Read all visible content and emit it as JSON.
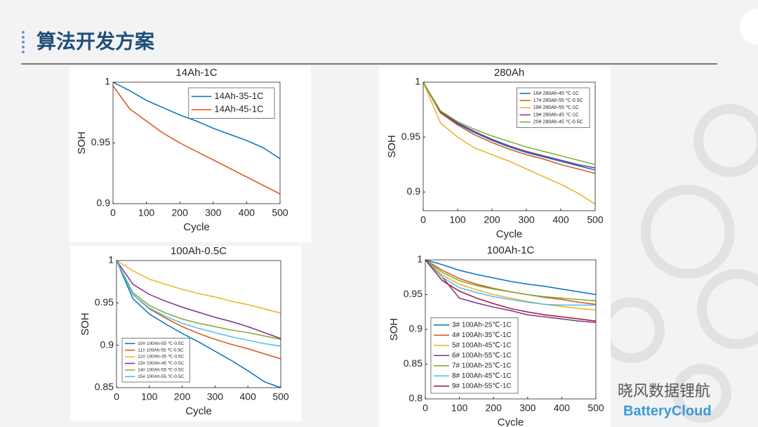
{
  "slide": {
    "title": "算法开发方案",
    "watermark": "晓风数据锂航",
    "logo": "BatteryCloud"
  },
  "chart_data": [
    {
      "type": "line",
      "title": "14Ah-1C",
      "xlabel": "Cycle",
      "ylabel": "SOH",
      "x": [
        0,
        50,
        100,
        150,
        200,
        250,
        300,
        350,
        400,
        450,
        500
      ],
      "xlim": [
        0,
        500
      ],
      "xticks": [
        0,
        100,
        200,
        300,
        400,
        500
      ],
      "ylim": [
        0.9,
        1
      ],
      "yticks": [
        0.9,
        0.95,
        1
      ],
      "legend": "upper right",
      "series": [
        {
          "name": "14Ah-35-1C",
          "color": "#0072bd",
          "values": [
            1,
            0.993,
            0.985,
            0.979,
            0.973,
            0.968,
            0.962,
            0.957,
            0.952,
            0.946,
            0.937
          ]
        },
        {
          "name": "14Ah-45-1C",
          "color": "#d95319",
          "values": [
            0.997,
            0.978,
            0.968,
            0.958,
            0.95,
            0.943,
            0.936,
            0.929,
            0.922,
            0.915,
            0.908
          ]
        }
      ]
    },
    {
      "type": "line",
      "title": "280Ah",
      "xlabel": "Cycle",
      "ylabel": "SOH",
      "x": [
        0,
        50,
        100,
        150,
        200,
        250,
        300,
        350,
        400,
        450,
        500
      ],
      "xlim": [
        0,
        500
      ],
      "xticks": [
        0,
        100,
        200,
        300,
        400,
        500
      ],
      "ylim": [
        0.883,
        1
      ],
      "yticks": [
        0.9,
        0.95,
        1
      ],
      "legend": "upper right",
      "series": [
        {
          "name": "16# 280Ah-45 ℃-1C",
          "color": "#0072bd",
          "values": [
            1,
            0.973,
            0.962,
            0.954,
            0.947,
            0.941,
            0.936,
            0.932,
            0.928,
            0.924,
            0.92
          ]
        },
        {
          "name": "17# 280Ah-55 ℃-0.5C",
          "color": "#d95319",
          "values": [
            1,
            0.972,
            0.961,
            0.952,
            0.945,
            0.939,
            0.934,
            0.93,
            0.925,
            0.921,
            0.917
          ]
        },
        {
          "name": "18# 280Ah-55 ℃-1C",
          "color": "#edb120",
          "values": [
            1,
            0.963,
            0.95,
            0.94,
            0.934,
            0.928,
            0.921,
            0.914,
            0.907,
            0.899,
            0.889
          ]
        },
        {
          "name": "19# 280Ah-45 ℃-1C",
          "color": "#7e2f8e",
          "values": [
            1,
            0.973,
            0.963,
            0.955,
            0.948,
            0.942,
            0.937,
            0.933,
            0.929,
            0.925,
            0.922
          ]
        },
        {
          "name": "20# 280Ah-45 ℃-0.5C",
          "color": "#77ac30",
          "values": [
            1,
            0.974,
            0.964,
            0.957,
            0.951,
            0.946,
            0.941,
            0.937,
            0.933,
            0.929,
            0.925
          ]
        }
      ]
    },
    {
      "type": "line",
      "title": "100Ah-0.5C",
      "xlabel": "Cycle",
      "ylabel": "SOH",
      "x": [
        0,
        50,
        100,
        150,
        200,
        250,
        300,
        350,
        400,
        450,
        500
      ],
      "xlim": [
        0,
        500
      ],
      "xticks": [
        0,
        100,
        200,
        300,
        400,
        500
      ],
      "ylim": [
        0.85,
        1
      ],
      "yticks": [
        0.85,
        0.9,
        0.95,
        1
      ],
      "legend": "lower left",
      "series": [
        {
          "name": "10# 100Ah-55 ℃-0.5C",
          "color": "#0072bd",
          "values": [
            1,
            0.955,
            0.937,
            0.925,
            0.914,
            0.904,
            0.893,
            0.882,
            0.87,
            0.857,
            0.85
          ]
        },
        {
          "name": "11# 100Ah-55 ℃-0.5C",
          "color": "#d95319",
          "values": [
            1,
            0.96,
            0.943,
            0.932,
            0.922,
            0.914,
            0.907,
            0.901,
            0.896,
            0.89,
            0.884
          ]
        },
        {
          "name": "12# 100Ah-35 ℃-0.5C",
          "color": "#edb120",
          "values": [
            1,
            0.988,
            0.978,
            0.972,
            0.966,
            0.961,
            0.957,
            0.952,
            0.948,
            0.943,
            0.938
          ]
        },
        {
          "name": "13# 100Ah-45 ℃-0.5C",
          "color": "#7e2f8e",
          "values": [
            1,
            0.972,
            0.96,
            0.952,
            0.945,
            0.939,
            0.933,
            0.928,
            0.922,
            0.915,
            0.908
          ]
        },
        {
          "name": "14# 100Ah-55 ℃-0.5C",
          "color": "#77ac30",
          "values": [
            1,
            0.962,
            0.947,
            0.938,
            0.931,
            0.926,
            0.922,
            0.918,
            0.915,
            0.911,
            0.907
          ]
        },
        {
          "name": "15# 100Ah-55 ℃-0.5C",
          "color": "#4dbeee",
          "values": [
            1,
            0.96,
            0.944,
            0.934,
            0.926,
            0.92,
            0.915,
            0.91,
            0.906,
            0.902,
            0.899
          ]
        }
      ]
    },
    {
      "type": "line",
      "title": "100Ah-1C",
      "xlabel": "Cycle",
      "ylabel": "SOH",
      "x": [
        0,
        50,
        100,
        150,
        200,
        250,
        300,
        350,
        400,
        450,
        500
      ],
      "xlim": [
        0,
        500
      ],
      "xticks": [
        0,
        100,
        200,
        300,
        400,
        500
      ],
      "ylim": [
        0.8,
        1
      ],
      "yticks": [
        0.8,
        0.85,
        0.9,
        0.95,
        1
      ],
      "legend": "lower left",
      "series": [
        {
          "name": "3# 100Ah-25℃-1C",
          "color": "#0072bd",
          "values": [
            1,
            0.993,
            0.985,
            0.979,
            0.974,
            0.969,
            0.965,
            0.962,
            0.958,
            0.954,
            0.95
          ]
        },
        {
          "name": "4# 100Ah-35℃-1C",
          "color": "#d95319",
          "values": [
            1,
            0.985,
            0.973,
            0.965,
            0.959,
            0.954,
            0.95,
            0.946,
            0.943,
            0.939,
            0.936
          ]
        },
        {
          "name": "5# 100Ah-45℃-1C",
          "color": "#edb120",
          "values": [
            1,
            0.978,
            0.965,
            0.957,
            0.95,
            0.945,
            0.94,
            0.936,
            0.933,
            0.93,
            0.928
          ]
        },
        {
          "name": "6# 100Ah-55℃-1C",
          "color": "#7e2f8e",
          "values": [
            1,
            0.975,
            0.945,
            0.938,
            0.932,
            0.927,
            0.921,
            0.918,
            0.915,
            0.912,
            0.91
          ]
        },
        {
          "name": "7# 100Ah-25℃-1C",
          "color": "#77ac30",
          "values": [
            1,
            0.982,
            0.97,
            0.963,
            0.958,
            0.954,
            0.95,
            0.947,
            0.945,
            0.943,
            0.941
          ]
        },
        {
          "name": "8# 100Ah-45℃-1C",
          "color": "#4dbeee",
          "values": [
            1,
            0.975,
            0.96,
            0.953,
            0.947,
            0.943,
            0.939,
            0.936,
            0.935,
            0.935,
            0.935
          ]
        },
        {
          "name": "9# 100Ah-55℃-1C",
          "color": "#a2142f",
          "values": [
            1,
            0.97,
            0.955,
            0.945,
            0.937,
            0.93,
            0.925,
            0.921,
            0.918,
            0.915,
            0.912
          ]
        }
      ]
    }
  ]
}
